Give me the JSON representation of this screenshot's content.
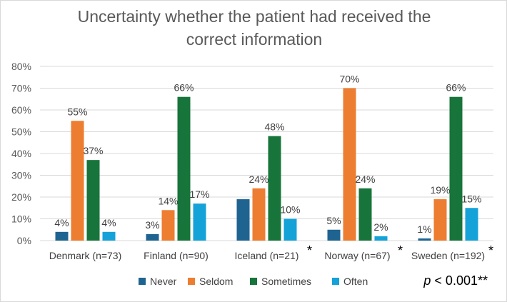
{
  "chart_data": {
    "type": "bar",
    "title_line1": "Uncertainty whether the patient had received the",
    "title_line2": "correct information",
    "categories": [
      "Denmark (n=73)",
      "Finland (n=90)",
      "Iceland (n=21)",
      "Norway (n=67)",
      "Sweden (n=192)"
    ],
    "starred": [
      false,
      false,
      true,
      true,
      true
    ],
    "star_symbol": "*",
    "series": [
      {
        "name": "Never",
        "color": "#1f6391",
        "values": [
          4,
          3,
          19,
          5,
          1
        ]
      },
      {
        "name": "Seldom",
        "color": "#ed7d31",
        "values": [
          55,
          14,
          24,
          70,
          19
        ]
      },
      {
        "name": "Sometimes",
        "color": "#17743a",
        "values": [
          37,
          66,
          48,
          24,
          66
        ]
      },
      {
        "name": "Often",
        "color": "#14a2d8",
        "values": [
          4,
          17,
          10,
          2,
          15
        ]
      }
    ],
    "labeled_series": [
      false,
      true,
      true,
      true,
      true
    ],
    "data_labels_for": {
      "Never": [
        "4%",
        "3%",
        "19%",
        "5%",
        "1%"
      ],
      "Seldom": [
        "55%",
        "14%",
        "24%",
        "70%",
        "19%"
      ],
      "Sometimes": [
        "37%",
        "66%",
        "48%",
        "24%",
        "66%"
      ],
      "Often": [
        "4%",
        "17%",
        "10%",
        "2%",
        "15%"
      ]
    },
    "ylim": [
      0,
      80
    ],
    "yticks": [
      "0%",
      "10%",
      "20%",
      "30%",
      "40%",
      "50%",
      "60%",
      "70%",
      "80%"
    ],
    "grid": true,
    "legend_position": "bottom",
    "p_value_label": "p",
    "p_value_text": " < 0.001**"
  }
}
